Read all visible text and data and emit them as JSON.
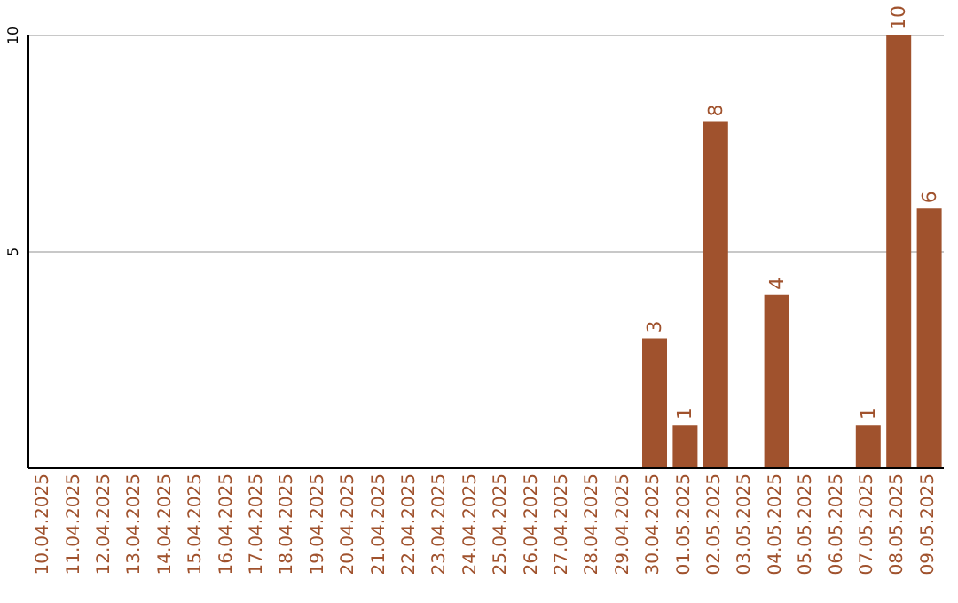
{
  "chart_data": {
    "type": "bar",
    "categories": [
      "10.04.2025",
      "11.04.2025",
      "12.04.2025",
      "13.04.2025",
      "14.04.2025",
      "15.04.2025",
      "16.04.2025",
      "17.04.2025",
      "18.04.2025",
      "19.04.2025",
      "20.04.2025",
      "21.04.2025",
      "22.04.2025",
      "23.04.2025",
      "24.04.2025",
      "25.04.2025",
      "26.04.2025",
      "27.04.2025",
      "28.04.2025",
      "29.04.2025",
      "30.04.2025",
      "01.05.2025",
      "02.05.2025",
      "03.05.2025",
      "04.05.2025",
      "05.05.2025",
      "06.05.2025",
      "07.05.2025",
      "08.05.2025",
      "09.05.2025"
    ],
    "values": [
      null,
      null,
      null,
      null,
      null,
      null,
      null,
      null,
      null,
      null,
      null,
      null,
      null,
      null,
      null,
      null,
      null,
      null,
      null,
      null,
      3,
      1,
      8,
      null,
      4,
      null,
      null,
      1,
      10,
      6
    ],
    "color": "#a0522d",
    "ylim": [
      0,
      10
    ],
    "yticks": [
      5,
      10
    ],
    "grid": "y",
    "data_labels": true
  }
}
